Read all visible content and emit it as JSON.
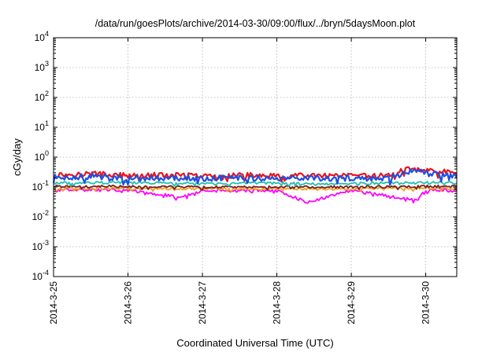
{
  "chart_data": {
    "type": "line",
    "title": "/data/run/goesPlots/archive/2014-03-30/09:00/flux/../bryn/5daysMoon.plot",
    "xlabel": "Coordinated Universal Time (UTC)",
    "ylabel": "cGy/day",
    "y_scale": "log",
    "ylim": [
      0.0001,
      10000
    ],
    "y_ticks": [
      {
        "value": 0.0001,
        "base": "10",
        "exp": "-4"
      },
      {
        "value": 0.001,
        "base": "10",
        "exp": "-3"
      },
      {
        "value": 0.01,
        "base": "10",
        "exp": "-2"
      },
      {
        "value": 0.1,
        "base": "10",
        "exp": "-1"
      },
      {
        "value": 1,
        "base": "10",
        "exp": "0"
      },
      {
        "value": 10,
        "base": "10",
        "exp": "1"
      },
      {
        "value": 100,
        "base": "10",
        "exp": "2"
      },
      {
        "value": 1000,
        "base": "10",
        "exp": "3"
      },
      {
        "value": 10000,
        "base": "10",
        "exp": "4"
      }
    ],
    "x_ticks": [
      "2014-3-25",
      "2014-3-26",
      "2014-3-27",
      "2014-3-28",
      "2014-3-29",
      "2014-3-30"
    ],
    "xlim": [
      "2014-03-25 00:00",
      "2014-03-30 10:00"
    ],
    "grid": true,
    "legend": "none",
    "series": [
      {
        "color": "#e8141b",
        "x": [
          "2014-03-25 00:00",
          "2014-03-25 12:00",
          "2014-03-26 00:00",
          "2014-03-26 12:00",
          "2014-03-27 00:00",
          "2014-03-27 12:00",
          "2014-03-28 00:00",
          "2014-03-28 12:00",
          "2014-03-29 00:00",
          "2014-03-29 12:00",
          "2014-03-29 20:00",
          "2014-03-30 00:00",
          "2014-03-30 10:00"
        ],
        "values": [
          0.25,
          0.28,
          0.24,
          0.25,
          0.23,
          0.25,
          0.23,
          0.24,
          0.23,
          0.24,
          0.45,
          0.35,
          0.3
        ]
      },
      {
        "color": "#1f4fe0",
        "x": [
          "2014-03-25 00:00",
          "2014-03-25 12:00",
          "2014-03-26 00:00",
          "2014-03-26 12:00",
          "2014-03-27 00:00",
          "2014-03-27 12:00",
          "2014-03-28 00:00",
          "2014-03-28 12:00",
          "2014-03-29 00:00",
          "2014-03-29 12:00",
          "2014-03-29 20:00",
          "2014-03-30 00:00",
          "2014-03-30 10:00"
        ],
        "values": [
          0.21,
          0.23,
          0.2,
          0.21,
          0.19,
          0.21,
          0.19,
          0.2,
          0.19,
          0.2,
          0.36,
          0.28,
          0.25
        ]
      },
      {
        "color": "#1fbfb0",
        "x": [
          "2014-03-25 00:00",
          "2014-03-26 00:00",
          "2014-03-27 00:00",
          "2014-03-28 00:00",
          "2014-03-29 00:00",
          "2014-03-30 00:00",
          "2014-03-30 10:00"
        ],
        "values": [
          0.14,
          0.14,
          0.13,
          0.135,
          0.13,
          0.14,
          0.14
        ]
      },
      {
        "color": "#7a1e1e",
        "x": [
          "2014-03-25 00:00",
          "2014-03-26 00:00",
          "2014-03-27 00:00",
          "2014-03-28 00:00",
          "2014-03-29 00:00",
          "2014-03-30 00:00",
          "2014-03-30 10:00"
        ],
        "values": [
          0.105,
          0.105,
          0.1,
          0.1,
          0.1,
          0.105,
          0.105
        ]
      },
      {
        "color": "#f0a020",
        "x": [
          "2014-03-25 00:00",
          "2014-03-26 00:00",
          "2014-03-27 00:00",
          "2014-03-28 00:00",
          "2014-03-29 00:00",
          "2014-03-30 00:00",
          "2014-03-30 10:00"
        ],
        "values": [
          0.09,
          0.09,
          0.088,
          0.088,
          0.087,
          0.09,
          0.09
        ]
      },
      {
        "color": "#ff00ff",
        "x": [
          "2014-03-25 00:00",
          "2014-03-26 00:00",
          "2014-03-26 17:00",
          "2014-03-27 00:00",
          "2014-03-28 00:00",
          "2014-03-28 10:00",
          "2014-03-29 00:00",
          "2014-03-29 21:00",
          "2014-03-30 00:00",
          "2014-03-30 10:00"
        ],
        "values": [
          0.08,
          0.08,
          0.045,
          0.078,
          0.076,
          0.03,
          0.078,
          0.035,
          0.08,
          0.078
        ]
      }
    ]
  }
}
